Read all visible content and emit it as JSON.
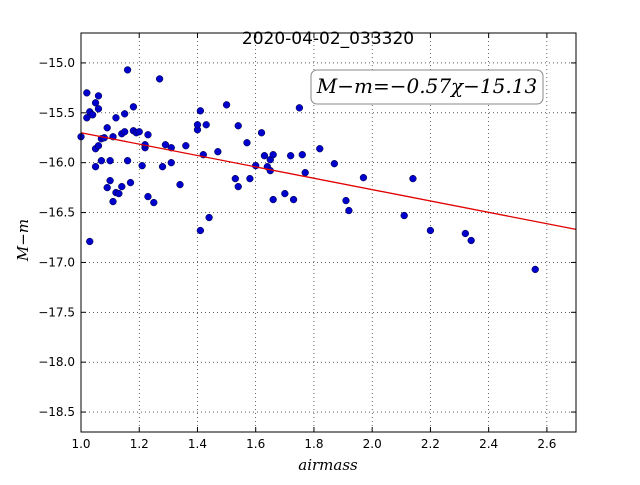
{
  "chart_data": {
    "type": "scatter",
    "title": "2020-04-02_033320",
    "xlabel": "airmass",
    "ylabel": "M−m",
    "xlim": [
      1.0,
      2.7
    ],
    "ylim": [
      -18.7,
      -14.7
    ],
    "y_inverted": true,
    "grid": true,
    "x_ticks": [
      "1.0",
      "1.2",
      "1.4",
      "1.6",
      "1.8",
      "2.0",
      "2.2",
      "2.4",
      "2.6"
    ],
    "y_ticks": [
      "−15.0",
      "−15.5",
      "−16.0",
      "−16.5",
      "−17.0",
      "−17.5",
      "−18.0",
      "−18.5"
    ],
    "fit_label": "M−m=−0.57χ−15.13",
    "fit": {
      "slope": -0.57,
      "intercept": -15.13,
      "color": "#e00000"
    },
    "marker_color": "#0000cc",
    "points": [
      [
        1.0,
        -15.74
      ],
      [
        1.02,
        -15.3
      ],
      [
        1.02,
        -15.55
      ],
      [
        1.03,
        -15.49
      ],
      [
        1.03,
        -16.79
      ],
      [
        1.04,
        -15.52
      ],
      [
        1.05,
        -15.4
      ],
      [
        1.05,
        -15.86
      ],
      [
        1.05,
        -16.04
      ],
      [
        1.06,
        -15.83
      ],
      [
        1.06,
        -15.33
      ],
      [
        1.06,
        -15.46
      ],
      [
        1.07,
        -15.98
      ],
      [
        1.07,
        -15.76
      ],
      [
        1.08,
        -15.75
      ],
      [
        1.09,
        -16.25
      ],
      [
        1.09,
        -15.65
      ],
      [
        1.1,
        -16.18
      ],
      [
        1.1,
        -15.98
      ],
      [
        1.11,
        -15.74
      ],
      [
        1.11,
        -16.39
      ],
      [
        1.12,
        -15.55
      ],
      [
        1.12,
        -16.3
      ],
      [
        1.13,
        -16.31
      ],
      [
        1.14,
        -16.24
      ],
      [
        1.14,
        -15.71
      ],
      [
        1.15,
        -15.51
      ],
      [
        1.15,
        -15.69
      ],
      [
        1.16,
        -15.07
      ],
      [
        1.16,
        -15.98
      ],
      [
        1.17,
        -16.2
      ],
      [
        1.18,
        -15.68
      ],
      [
        1.18,
        -15.44
      ],
      [
        1.19,
        -15.7
      ],
      [
        1.2,
        -15.69
      ],
      [
        1.21,
        -16.03
      ],
      [
        1.22,
        -15.85
      ],
      [
        1.22,
        -15.82
      ],
      [
        1.23,
        -16.34
      ],
      [
        1.23,
        -15.72
      ],
      [
        1.25,
        -16.4
      ],
      [
        1.27,
        -15.16
      ],
      [
        1.28,
        -16.04
      ],
      [
        1.29,
        -15.82
      ],
      [
        1.31,
        -15.85
      ],
      [
        1.31,
        -16.0
      ],
      [
        1.34,
        -16.22
      ],
      [
        1.36,
        -15.83
      ],
      [
        1.4,
        -15.67
      ],
      [
        1.4,
        -15.62
      ],
      [
        1.41,
        -15.48
      ],
      [
        1.41,
        -16.68
      ],
      [
        1.42,
        -15.92
      ],
      [
        1.43,
        -15.62
      ],
      [
        1.44,
        -16.55
      ],
      [
        1.47,
        -15.89
      ],
      [
        1.5,
        -15.42
      ],
      [
        1.53,
        -16.16
      ],
      [
        1.54,
        -15.63
      ],
      [
        1.54,
        -16.24
      ],
      [
        1.57,
        -15.8
      ],
      [
        1.58,
        -16.16
      ],
      [
        1.6,
        -16.03
      ],
      [
        1.62,
        -15.7
      ],
      [
        1.63,
        -15.93
      ],
      [
        1.64,
        -16.04
      ],
      [
        1.65,
        -16.08
      ],
      [
        1.65,
        -15.97
      ],
      [
        1.66,
        -15.92
      ],
      [
        1.66,
        -16.37
      ],
      [
        1.7,
        -16.31
      ],
      [
        1.72,
        -15.93
      ],
      [
        1.73,
        -16.37
      ],
      [
        1.75,
        -15.45
      ],
      [
        1.76,
        -15.92
      ],
      [
        1.77,
        -16.1
      ],
      [
        1.82,
        -15.86
      ],
      [
        1.87,
        -16.01
      ],
      [
        1.91,
        -16.38
      ],
      [
        1.92,
        -16.48
      ],
      [
        1.97,
        -16.15
      ],
      [
        2.11,
        -16.53
      ],
      [
        2.14,
        -16.16
      ],
      [
        2.2,
        -16.68
      ],
      [
        2.32,
        -16.71
      ],
      [
        2.34,
        -16.78
      ],
      [
        2.56,
        -17.07
      ]
    ]
  }
}
